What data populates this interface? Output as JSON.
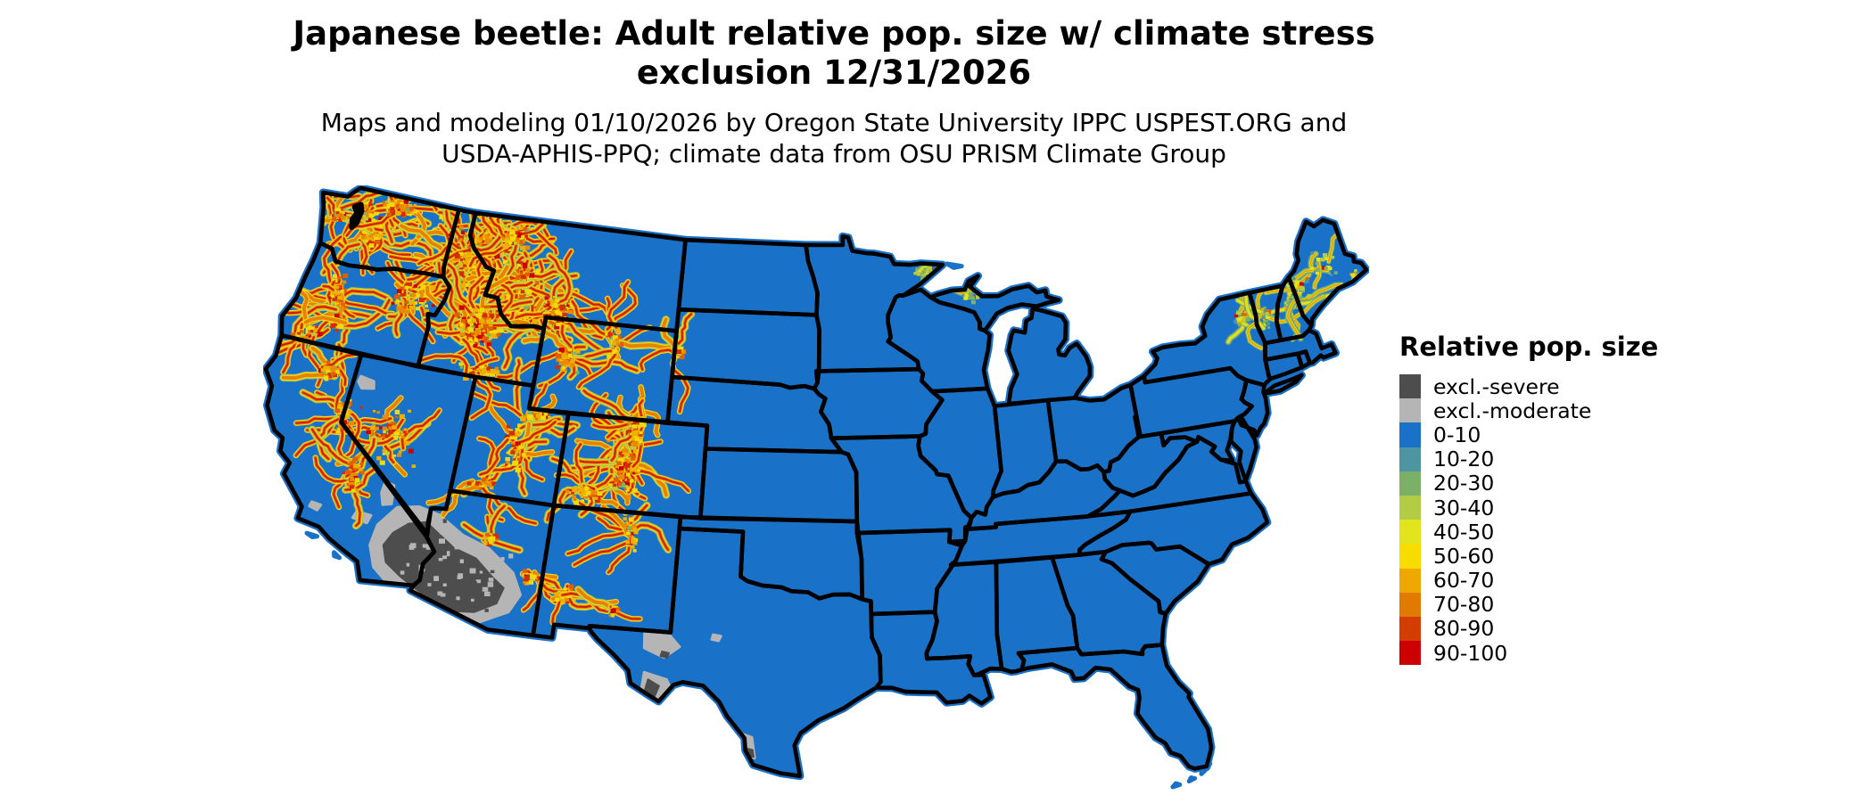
{
  "header": {
    "title": "Japanese beetle: Adult relative pop. size w/ climate stress\nexclusion 12/31/2026",
    "subtitle": "Maps and modeling 01/10/2026 by Oregon State University IPPC USPEST.ORG and\nUSDA-APHIS-PPQ; climate data from OSU PRISM Climate Group"
  },
  "legend": {
    "title": "Relative pop. size",
    "items": [
      {
        "label": "excl.-severe",
        "color": "#4d4d4d"
      },
      {
        "label": "excl.-moderate",
        "color": "#b5b5b5"
      },
      {
        "label": "0-10",
        "color": "#1a72c8"
      },
      {
        "label": "10-20",
        "color": "#4d95a0"
      },
      {
        "label": "20-30",
        "color": "#7cb068"
      },
      {
        "label": "30-40",
        "color": "#b3cc46"
      },
      {
        "label": "40-50",
        "color": "#e2e51e"
      },
      {
        "label": "50-60",
        "color": "#f8dc00"
      },
      {
        "label": "60-70",
        "color": "#efa800"
      },
      {
        "label": "70-80",
        "color": "#e27a00"
      },
      {
        "label": "80-90",
        "color": "#d43d00"
      },
      {
        "label": "90-100",
        "color": "#cc0000"
      }
    ]
  },
  "colors": {
    "map_base": "#1a72c8",
    "state_border": "#000000",
    "background": "#ffffff",
    "water": "#000000"
  }
}
